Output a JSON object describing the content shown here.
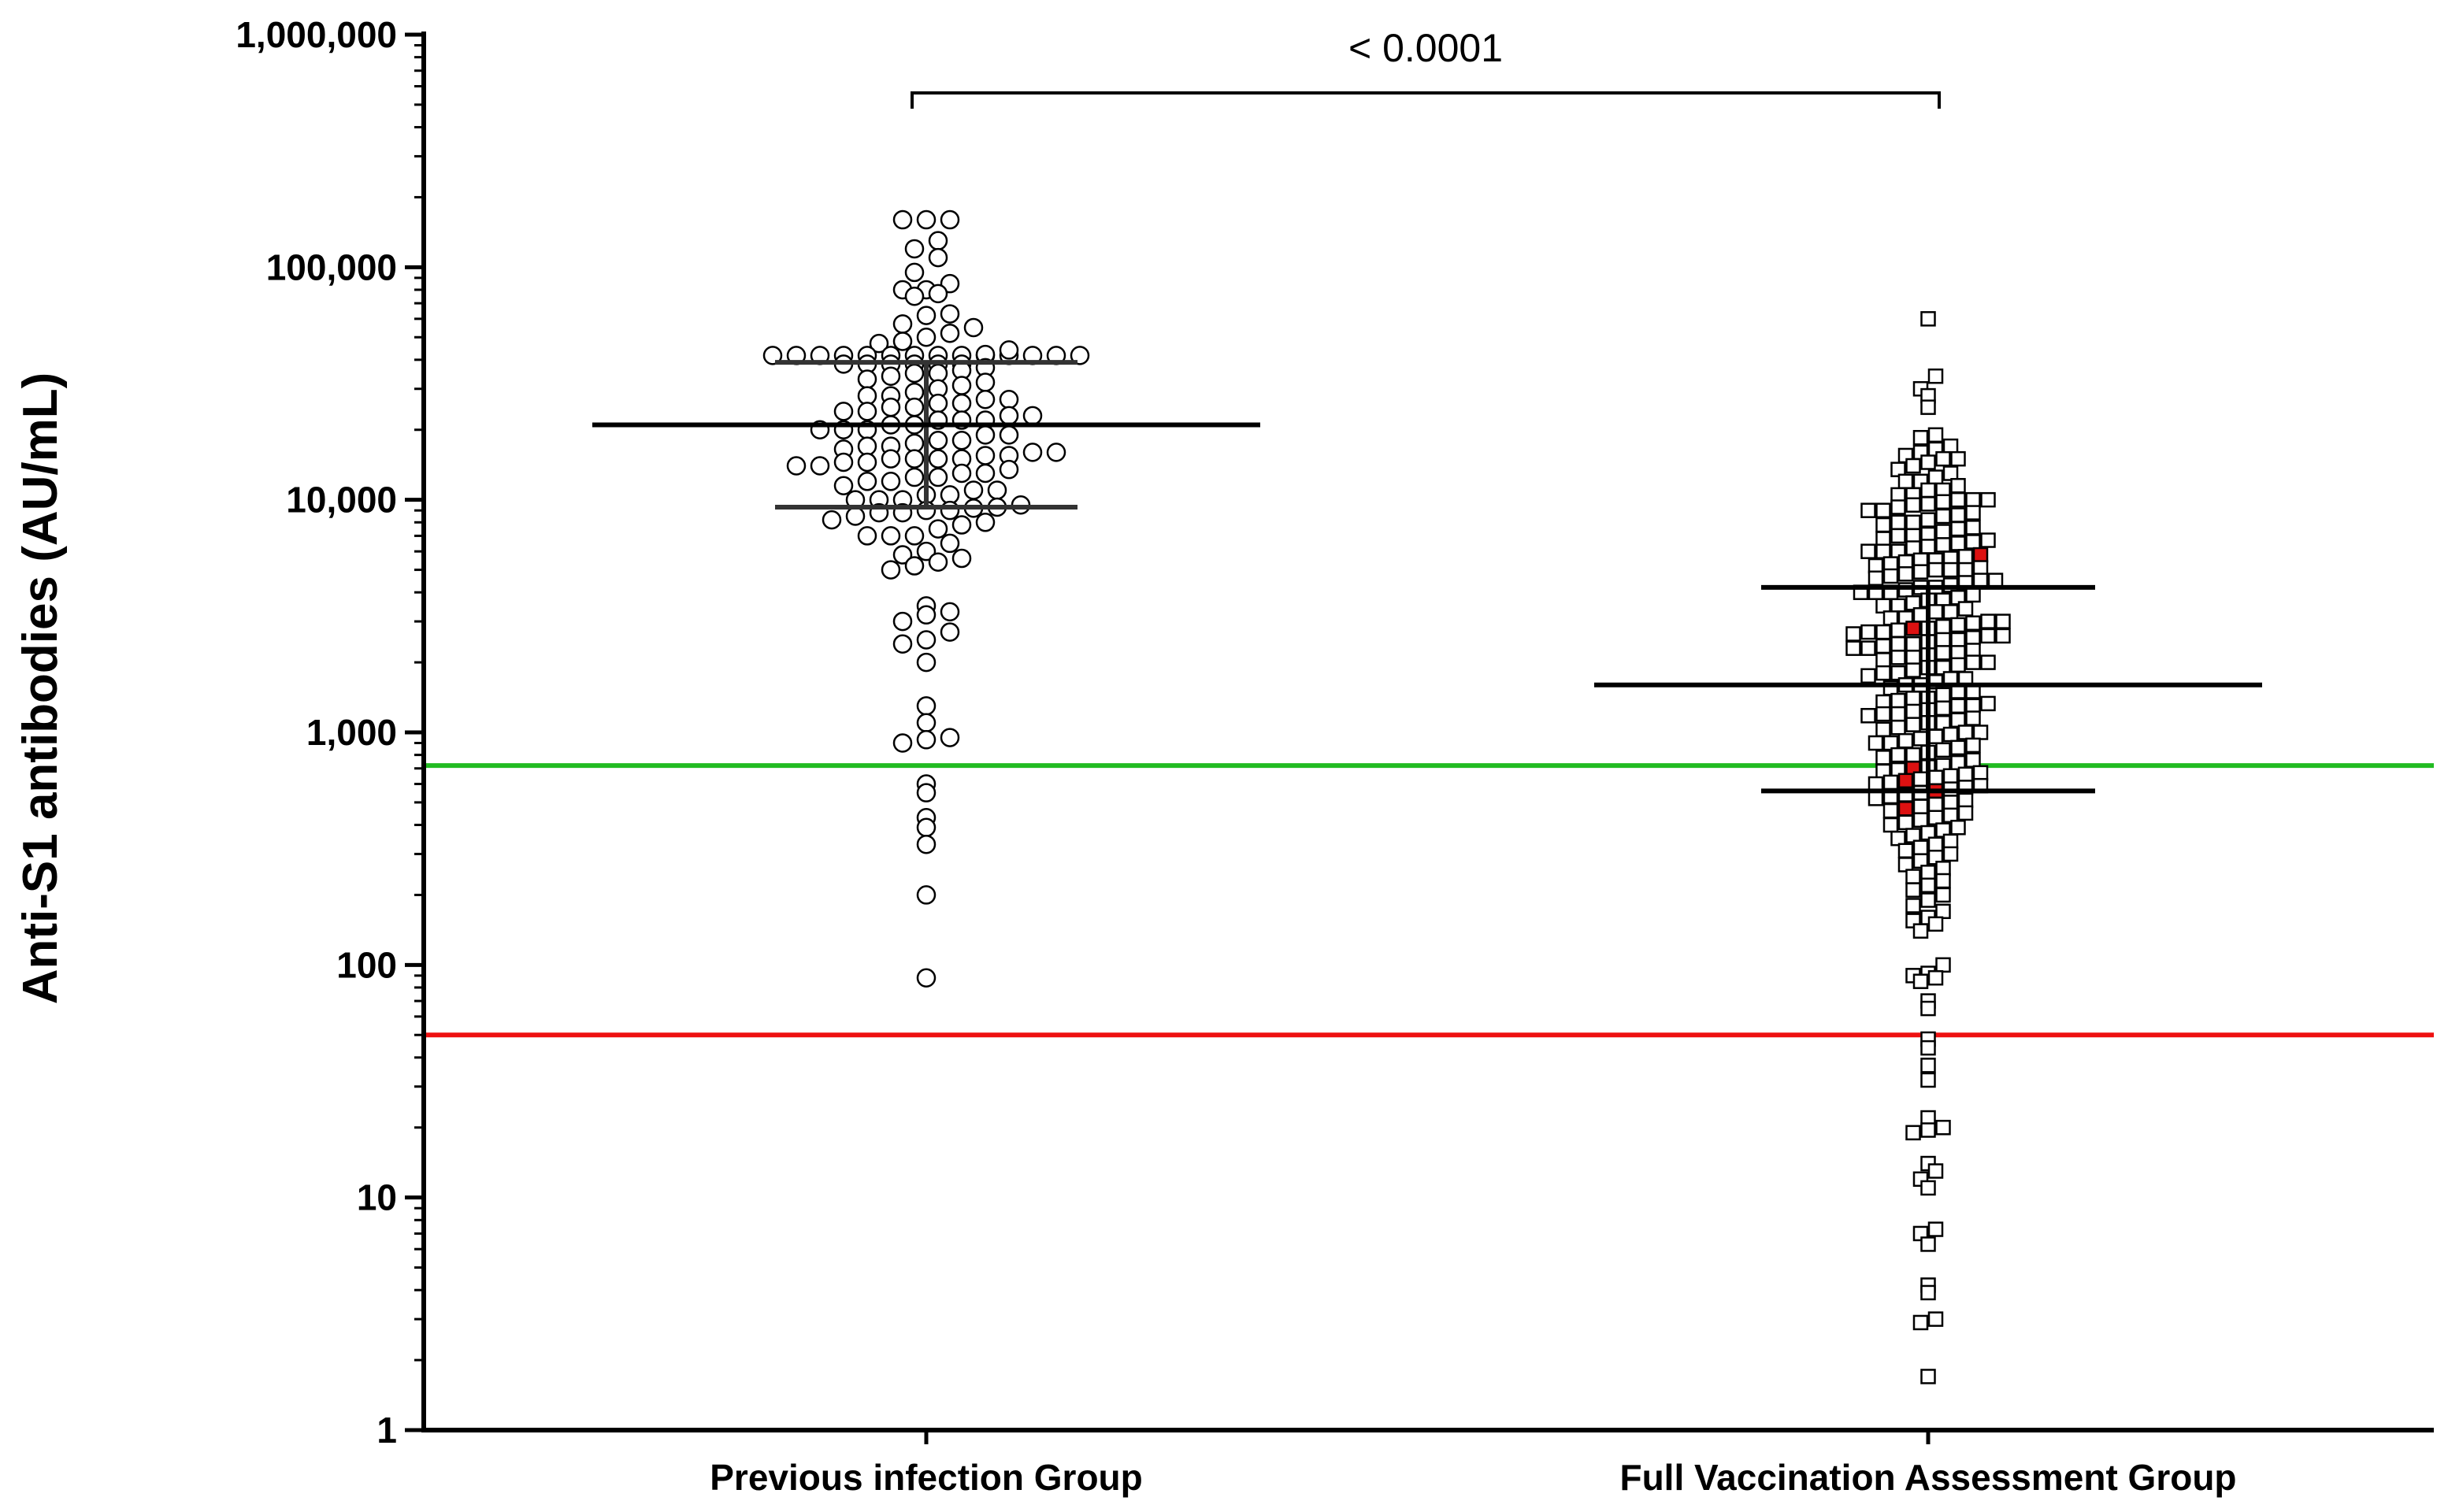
{
  "chart_data": {
    "type": "scatter",
    "subtype": "dot-plot (column scatter) with median and interquartile range",
    "ylabel": "Anti-S1 antibodies  (AU/mL)",
    "xlabel": "",
    "yscale": "log10",
    "ylim": [
      1,
      1000000
    ],
    "yticks": [
      1,
      10,
      100,
      1000,
      10000,
      100000,
      1000000
    ],
    "ytick_labels": [
      "1",
      "10",
      "100",
      "1,000",
      "10,000",
      "100,000",
      "1,000,000"
    ],
    "categories": [
      "Previous infection Group",
      "Full Vaccination Assessment Group"
    ],
    "significance": {
      "label": "< 0.0001",
      "between": [
        "Previous infection Group",
        "Full Vaccination Assessment Group"
      ]
    },
    "reference_lines": [
      {
        "value": 720,
        "color": "#22bb22",
        "kind": "horizontal"
      },
      {
        "value": 50,
        "color": "#ee1111",
        "kind": "horizontal"
      }
    ],
    "series": [
      {
        "name": "Previous infection Group",
        "marker": "circle",
        "median": 21000,
        "q1": 9300,
        "q3": 39000,
        "values": [
          160000,
          160000,
          160000,
          130000,
          120000,
          110000,
          95000,
          85000,
          80000,
          80000,
          77000,
          75000,
          63000,
          62000,
          57000,
          55000,
          52000,
          50000,
          48000,
          47000,
          46000,
          44000,
          40000,
          40000,
          40000,
          40000,
          40000,
          40000,
          40000,
          40000,
          40000,
          40000,
          40000,
          40000,
          40000,
          40000,
          40000,
          40000,
          40000,
          40000,
          40000,
          40000,
          37000,
          36000,
          35000,
          35000,
          34000,
          33000,
          32000,
          31000,
          30000,
          29000,
          28000,
          28000,
          27000,
          27000,
          26000,
          26000,
          25000,
          25000,
          24000,
          24000,
          23000,
          23000,
          22000,
          22000,
          22000,
          21000,
          21000,
          20000,
          20000,
          20000,
          19000,
          19000,
          18000,
          18000,
          17500,
          17000,
          17000,
          16500,
          16000,
          16000,
          15500,
          15500,
          15000,
          15000,
          15000,
          15000,
          14500,
          14500,
          14000,
          14000,
          13500,
          13000,
          13000,
          12500,
          12500,
          12000,
          12000,
          11500,
          11000,
          11000,
          10500,
          10500,
          10000,
          10000,
          10000,
          9500,
          9300,
          9200,
          9000,
          9000,
          8800,
          8800,
          8500,
          8200,
          8000,
          7800,
          7500,
          7000,
          7000,
          7000,
          6500,
          6000,
          5800,
          5600,
          5400,
          5200,
          5000,
          3500,
          3300,
          3200,
          3000,
          2700,
          2500,
          2400,
          2000,
          1300,
          1100,
          950,
          930,
          900,
          600,
          550,
          430,
          390,
          330,
          200,
          88
        ]
      },
      {
        "name": "Full Vaccination Assessment Group",
        "marker": "square",
        "median": 1600,
        "q1": 560,
        "q3": 4200,
        "highlighted_values": [
          5800,
          2800,
          700,
          620,
          560,
          470
        ],
        "highlight_color": "#dd1111",
        "values": [
          60000,
          34000,
          30000,
          28000,
          25000,
          19000,
          18500,
          17000,
          16500,
          16000,
          15500,
          15000,
          15000,
          14500,
          14000,
          13500,
          13000,
          12500,
          12000,
          12000,
          11500,
          11000,
          11000,
          10500,
          10500,
          10000,
          10000,
          10000,
          9800,
          9600,
          9500,
          9300,
          9000,
          9000,
          8800,
          8600,
          8500,
          8200,
          8000,
          8000,
          7800,
          7600,
          7500,
          7300,
          7100,
          7000,
          7000,
          6800,
          6700,
          6600,
          6500,
          6400,
          6300,
          6200,
          6000,
          6000,
          6000,
          5800,
          5700,
          5600,
          5500,
          5500,
          5400,
          5300,
          5200,
          5100,
          5000,
          5000,
          5000,
          4900,
          4800,
          4700,
          4600,
          4500,
          4500,
          4400,
          4300,
          4200,
          4200,
          4100,
          4000,
          4000,
          4000,
          3900,
          3800,
          3700,
          3700,
          3600,
          3500,
          3500,
          3400,
          3300,
          3300,
          3200,
          3100,
          3100,
          3000,
          3000,
          2950,
          2900,
          2850,
          2800,
          2800,
          2750,
          2700,
          2700,
          2650,
          2600,
          2600,
          2550,
          2500,
          2500,
          2450,
          2400,
          2400,
          2350,
          2300,
          2300,
          2250,
          2200,
          2200,
          2150,
          2100,
          2100,
          2050,
          2000,
          2000,
          1950,
          1900,
          1900,
          1850,
          1800,
          1800,
          1750,
          1700,
          1700,
          1650,
          1600,
          1600,
          1550,
          1500,
          1500,
          1450,
          1400,
          1400,
          1370,
          1350,
          1330,
          1300,
          1300,
          1270,
          1250,
          1230,
          1200,
          1200,
          1180,
          1150,
          1130,
          1100,
          1100,
          1080,
          1050,
          1030,
          1000,
          1000,
          980,
          960,
          940,
          920,
          900,
          900,
          880,
          860,
          840,
          820,
          800,
          800,
          780,
          760,
          740,
          720,
          710,
          700,
          690,
          680,
          670,
          660,
          650,
          640,
          630,
          620,
          610,
          600,
          590,
          580,
          570,
          560,
          550,
          540,
          530,
          520,
          510,
          500,
          490,
          480,
          470,
          460,
          450,
          440,
          430,
          420,
          410,
          400,
          390,
          380,
          370,
          360,
          350,
          340,
          330,
          320,
          310,
          300,
          290,
          280,
          270,
          260,
          250,
          240,
          230,
          220,
          210,
          200,
          190,
          180,
          170,
          160,
          155,
          150,
          140,
          100,
          92,
          90,
          88,
          85,
          70,
          65,
          48,
          44,
          37,
          32,
          22,
          20,
          19.5,
          19,
          14,
          13,
          12,
          11,
          7.3,
          7,
          6.3,
          4.2,
          3.9,
          3,
          2.9,
          1.7
        ]
      }
    ]
  }
}
